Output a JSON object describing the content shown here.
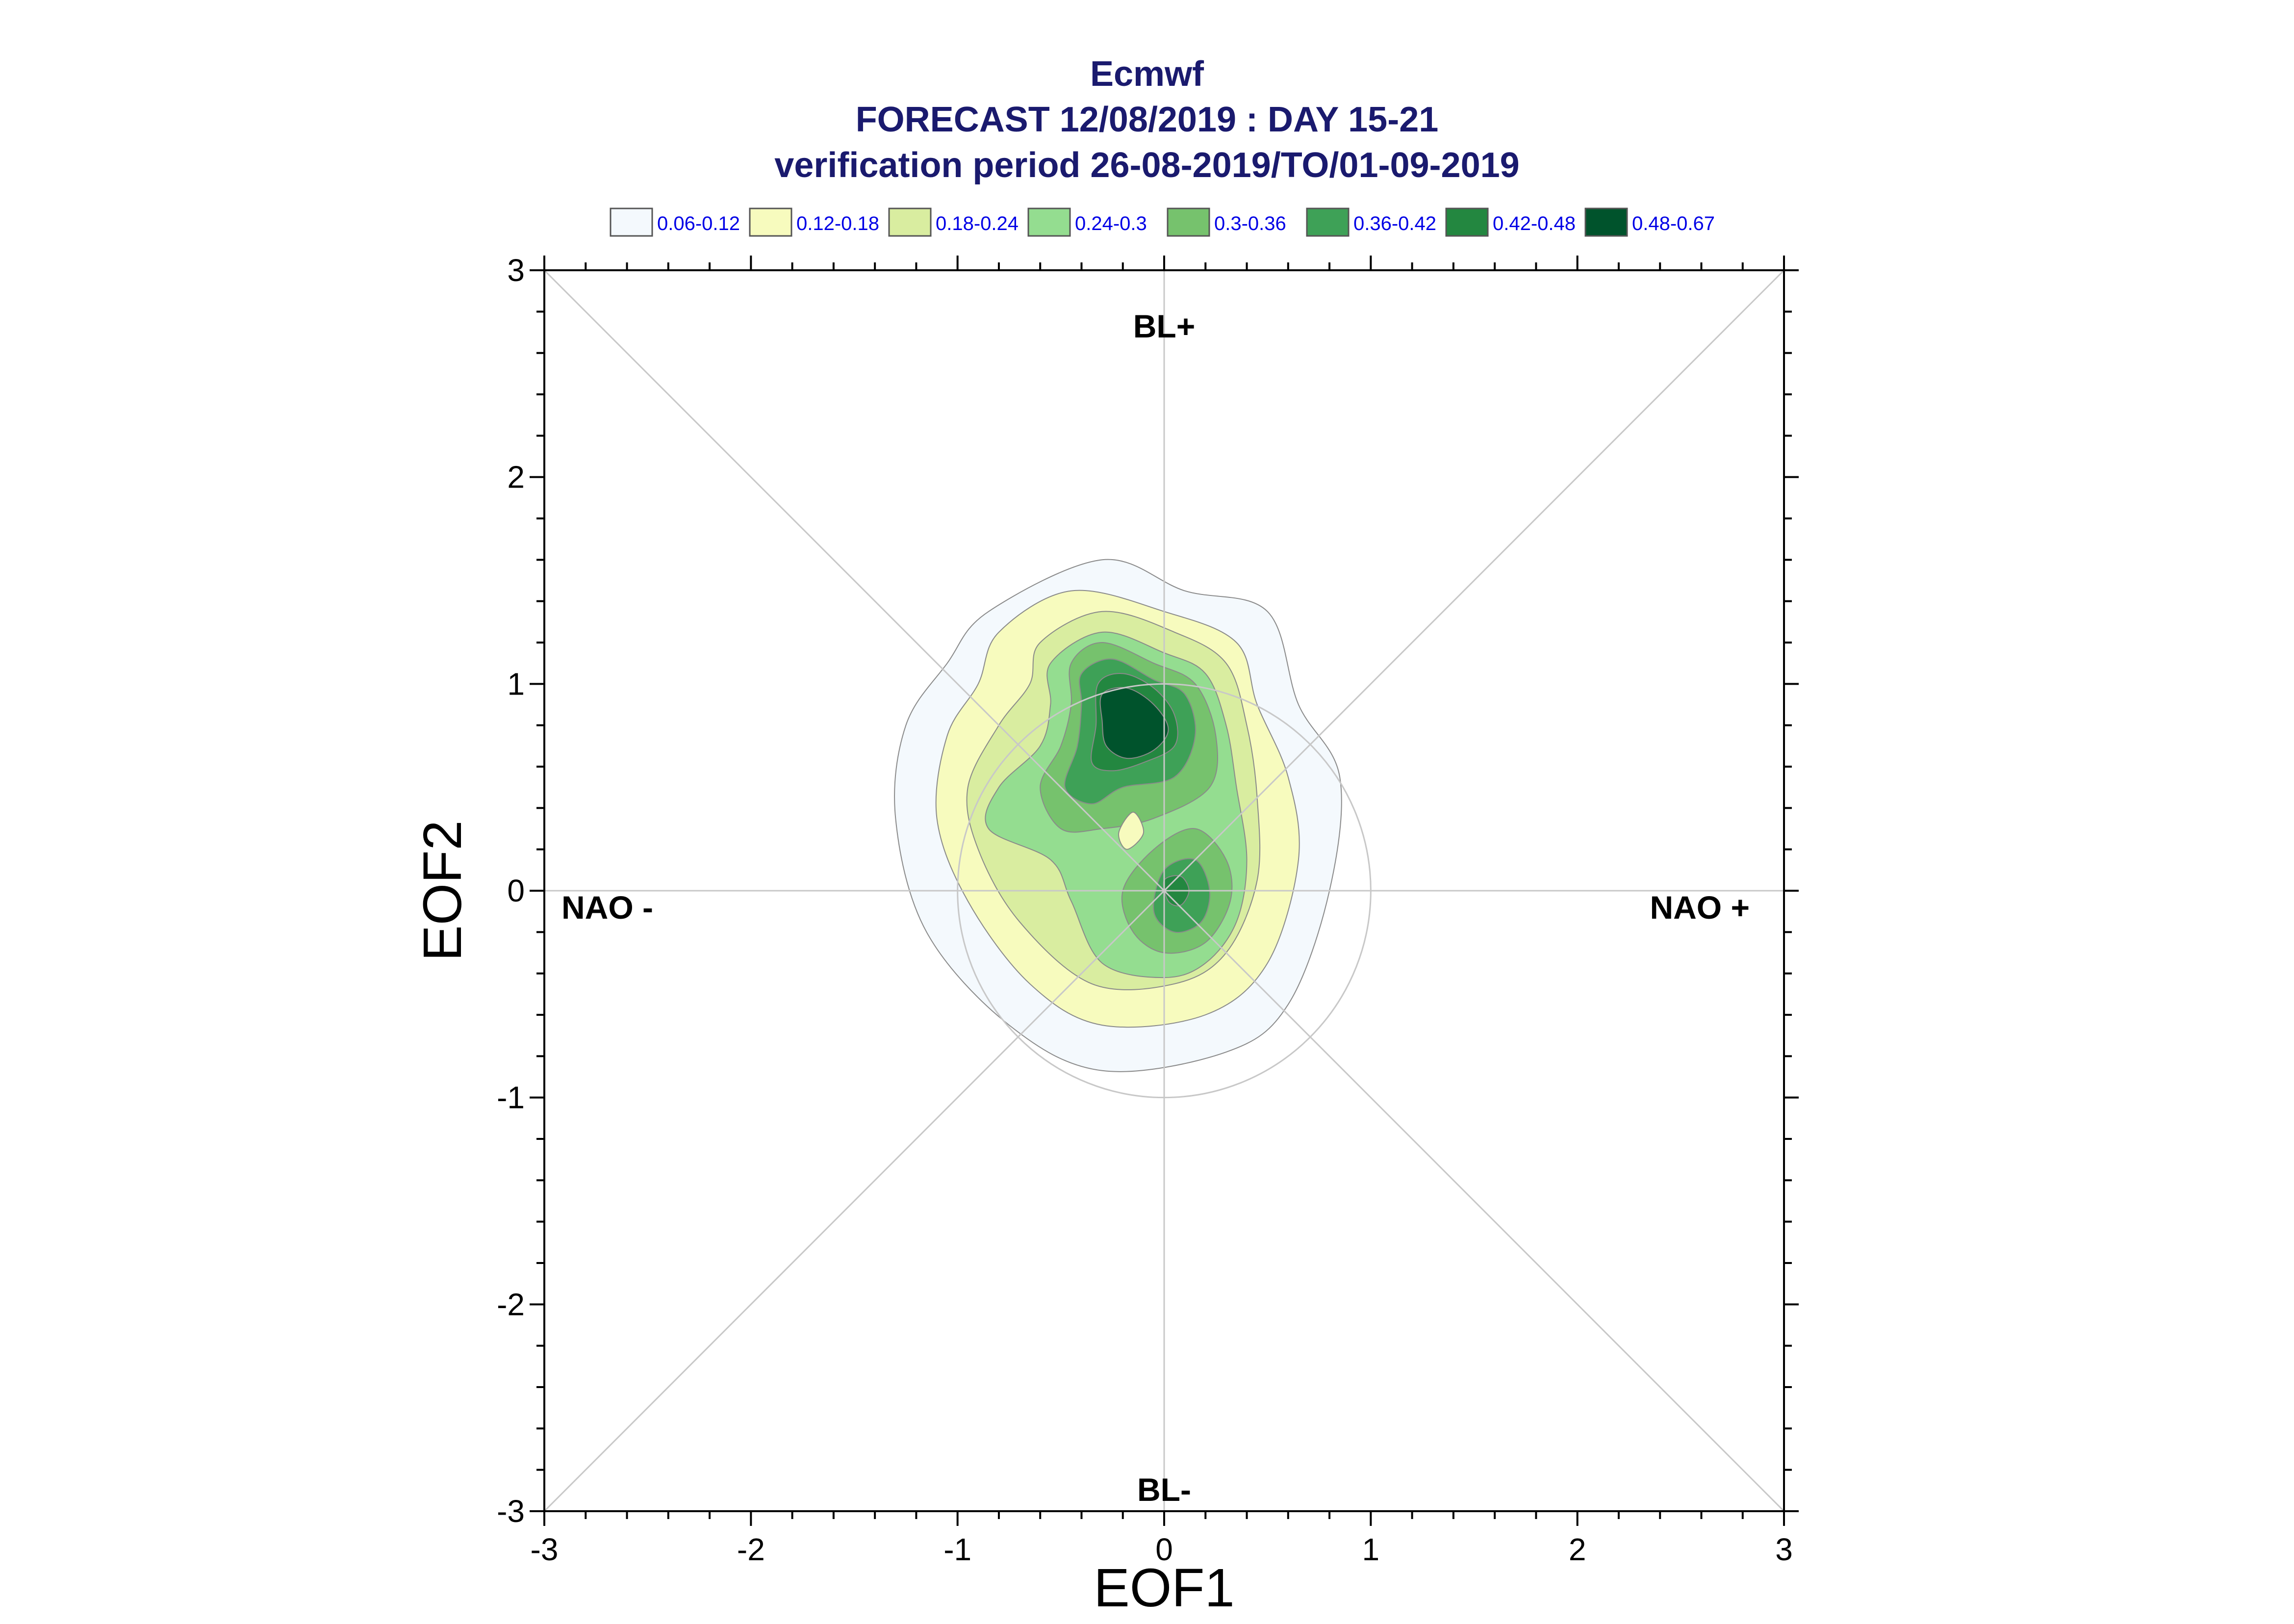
{
  "chart_data": {
    "type": "contour",
    "title": [
      "Ecmwf",
      "FORECAST 12/08/2019 : DAY 15-21",
      "verification period 26-08-2019/TO/01-09-2019"
    ],
    "xlabel": "EOF1",
    "ylabel": "EOF2",
    "xlim": [
      -3,
      3
    ],
    "ylim": [
      -3,
      3
    ],
    "xticks": [
      "-3",
      "-2",
      "-1",
      "0",
      "1",
      "2",
      "3"
    ],
    "yticks": [
      "3",
      "2",
      "1",
      "0",
      "-1",
      "-2",
      "-3"
    ],
    "xtick_values": [
      -3,
      -2,
      -1,
      0,
      1,
      2,
      3
    ],
    "ytick_values": [
      3,
      2,
      1,
      0,
      -1,
      -2,
      -3
    ],
    "grid": false,
    "reference_circle_radius": 1,
    "regions": {
      "top": "BL+",
      "bottom": "BL-",
      "left": "NAO -",
      "right": "NAO +"
    },
    "legend": {
      "placement": "top",
      "entries": [
        {
          "label": "0.06-0.12",
          "color": "#f4f9fd"
        },
        {
          "label": "0.12-0.18",
          "color": "#f7fbbe"
        },
        {
          "label": "0.18-0.24",
          "color": "#d9eda0"
        },
        {
          "label": "0.24-0.3",
          "color": "#94dd90"
        },
        {
          "label": "0.3-0.36",
          "color": "#76c26d"
        },
        {
          "label": "0.36-0.42",
          "color": "#3ea157"
        },
        {
          "label": "0.42-0.48",
          "color": "#238740"
        },
        {
          "label": "0.48-0.67",
          "color": "#00532c"
        }
      ]
    },
    "density_levels": [
      0.06,
      0.12,
      0.18,
      0.24,
      0.3,
      0.36,
      0.42,
      0.48
    ],
    "contours": [
      {
        "level": "0.06-0.12",
        "color": "#f4f9fd",
        "points": [
          [
            -0.85,
            1.35
          ],
          [
            -0.3,
            1.6
          ],
          [
            0.1,
            1.45
          ],
          [
            0.5,
            1.35
          ],
          [
            0.65,
            0.9
          ],
          [
            0.85,
            0.55
          ],
          [
            0.8,
            0.0
          ],
          [
            0.6,
            -0.55
          ],
          [
            0.3,
            -0.78
          ],
          [
            -0.3,
            -0.87
          ],
          [
            -0.75,
            -0.65
          ],
          [
            -1.15,
            -0.2
          ],
          [
            -1.3,
            0.35
          ],
          [
            -1.25,
            0.8
          ],
          [
            -1.05,
            1.1
          ]
        ]
      },
      {
        "level": "0.12-0.18",
        "color": "#f7fbbe",
        "points": [
          [
            -0.8,
            1.25
          ],
          [
            -0.45,
            1.45
          ],
          [
            0.0,
            1.35
          ],
          [
            0.35,
            1.2
          ],
          [
            0.45,
            0.9
          ],
          [
            0.6,
            0.55
          ],
          [
            0.65,
            0.15
          ],
          [
            0.5,
            -0.35
          ],
          [
            0.2,
            -0.6
          ],
          [
            -0.3,
            -0.65
          ],
          [
            -0.65,
            -0.45
          ],
          [
            -0.95,
            -0.05
          ],
          [
            -1.1,
            0.35
          ],
          [
            -1.05,
            0.75
          ],
          [
            -0.9,
            1.0
          ]
        ]
      },
      {
        "level": "0.18-0.24",
        "color": "#d9eda0",
        "points": [
          [
            -0.6,
            1.2
          ],
          [
            -0.3,
            1.35
          ],
          [
            0.05,
            1.25
          ],
          [
            0.3,
            1.1
          ],
          [
            0.4,
            0.8
          ],
          [
            0.45,
            0.45
          ],
          [
            0.45,
            0.05
          ],
          [
            0.3,
            -0.3
          ],
          [
            0.05,
            -0.45
          ],
          [
            -0.35,
            -0.45
          ],
          [
            -0.7,
            -0.15
          ],
          [
            -0.9,
            0.2
          ],
          [
            -0.95,
            0.5
          ],
          [
            -0.8,
            0.8
          ],
          [
            -0.65,
            1.0
          ]
        ]
      },
      {
        "level": "0.24-0.3",
        "color": "#94dd90",
        "points": [
          [
            -0.55,
            1.1
          ],
          [
            -0.3,
            1.25
          ],
          [
            0.0,
            1.15
          ],
          [
            0.2,
            1.05
          ],
          [
            0.3,
            0.8
          ],
          [
            0.35,
            0.5
          ],
          [
            0.4,
            0.15
          ],
          [
            0.35,
            -0.15
          ],
          [
            0.2,
            -0.35
          ],
          [
            0.0,
            -0.42
          ],
          [
            -0.3,
            -0.35
          ],
          [
            -0.45,
            -0.05
          ],
          [
            -0.55,
            0.15
          ],
          [
            -0.85,
            0.3
          ],
          [
            -0.8,
            0.5
          ],
          [
            -0.6,
            0.7
          ],
          [
            -0.55,
            0.9
          ]
        ]
      },
      {
        "level": "0.3-0.36",
        "color": "#76c26d",
        "points": [
          [
            -0.45,
            1.1
          ],
          [
            -0.3,
            1.2
          ],
          [
            -0.05,
            1.1
          ],
          [
            0.15,
            1.0
          ],
          [
            0.25,
            0.75
          ],
          [
            0.22,
            0.5
          ],
          [
            -0.05,
            0.35
          ],
          [
            -0.3,
            0.3
          ],
          [
            -0.5,
            0.3
          ],
          [
            -0.6,
            0.5
          ],
          [
            -0.5,
            0.7
          ],
          [
            -0.45,
            0.9
          ]
        ]
      },
      {
        "level": "0.3-0.36",
        "color": "#76c26d",
        "points": [
          [
            -0.05,
            0.2
          ],
          [
            0.15,
            0.3
          ],
          [
            0.3,
            0.15
          ],
          [
            0.32,
            -0.05
          ],
          [
            0.2,
            -0.25
          ],
          [
            0.0,
            -0.3
          ],
          [
            -0.15,
            -0.2
          ],
          [
            -0.2,
            0.0
          ]
        ]
      },
      {
        "level": "0.36-0.42",
        "color": "#3ea157",
        "points": [
          [
            -0.4,
            1.05
          ],
          [
            -0.25,
            1.12
          ],
          [
            -0.05,
            1.02
          ],
          [
            0.1,
            0.95
          ],
          [
            0.15,
            0.75
          ],
          [
            0.05,
            0.55
          ],
          [
            -0.2,
            0.5
          ],
          [
            -0.35,
            0.42
          ],
          [
            -0.48,
            0.5
          ],
          [
            -0.42,
            0.7
          ],
          [
            -0.4,
            0.9
          ]
        ]
      },
      {
        "level": "0.36-0.42",
        "color": "#3ea157",
        "points": [
          [
            0.0,
            0.1
          ],
          [
            0.15,
            0.15
          ],
          [
            0.22,
            0.0
          ],
          [
            0.18,
            -0.15
          ],
          [
            0.05,
            -0.2
          ],
          [
            -0.05,
            -0.1
          ]
        ]
      },
      {
        "level": "0.42-0.48",
        "color": "#238740",
        "points": [
          [
            -0.32,
            1.0
          ],
          [
            -0.2,
            1.05
          ],
          [
            -0.05,
            0.98
          ],
          [
            0.05,
            0.85
          ],
          [
            0.05,
            0.7
          ],
          [
            -0.1,
            0.62
          ],
          [
            -0.25,
            0.58
          ],
          [
            -0.35,
            0.62
          ],
          [
            -0.33,
            0.8
          ]
        ]
      },
      {
        "level": "0.42-0.48",
        "color": "#238740",
        "points": [
          [
            0.0,
            0.05
          ],
          [
            0.08,
            0.07
          ],
          [
            0.12,
            0.0
          ],
          [
            0.08,
            -0.07
          ],
          [
            0.02,
            -0.05
          ]
        ]
      },
      {
        "level": "0.48-0.67",
        "color": "#00532c",
        "points": [
          [
            -0.3,
            0.95
          ],
          [
            -0.18,
            0.98
          ],
          [
            -0.05,
            0.9
          ],
          [
            0.02,
            0.78
          ],
          [
            -0.05,
            0.68
          ],
          [
            -0.18,
            0.64
          ],
          [
            -0.28,
            0.7
          ],
          [
            -0.3,
            0.82
          ]
        ]
      },
      {
        "level": "0.12-0.18",
        "color": "#f7fbbe",
        "points": [
          [
            -0.15,
            0.38
          ],
          [
            -0.1,
            0.28
          ],
          [
            -0.18,
            0.2
          ],
          [
            -0.22,
            0.28
          ]
        ]
      }
    ]
  }
}
